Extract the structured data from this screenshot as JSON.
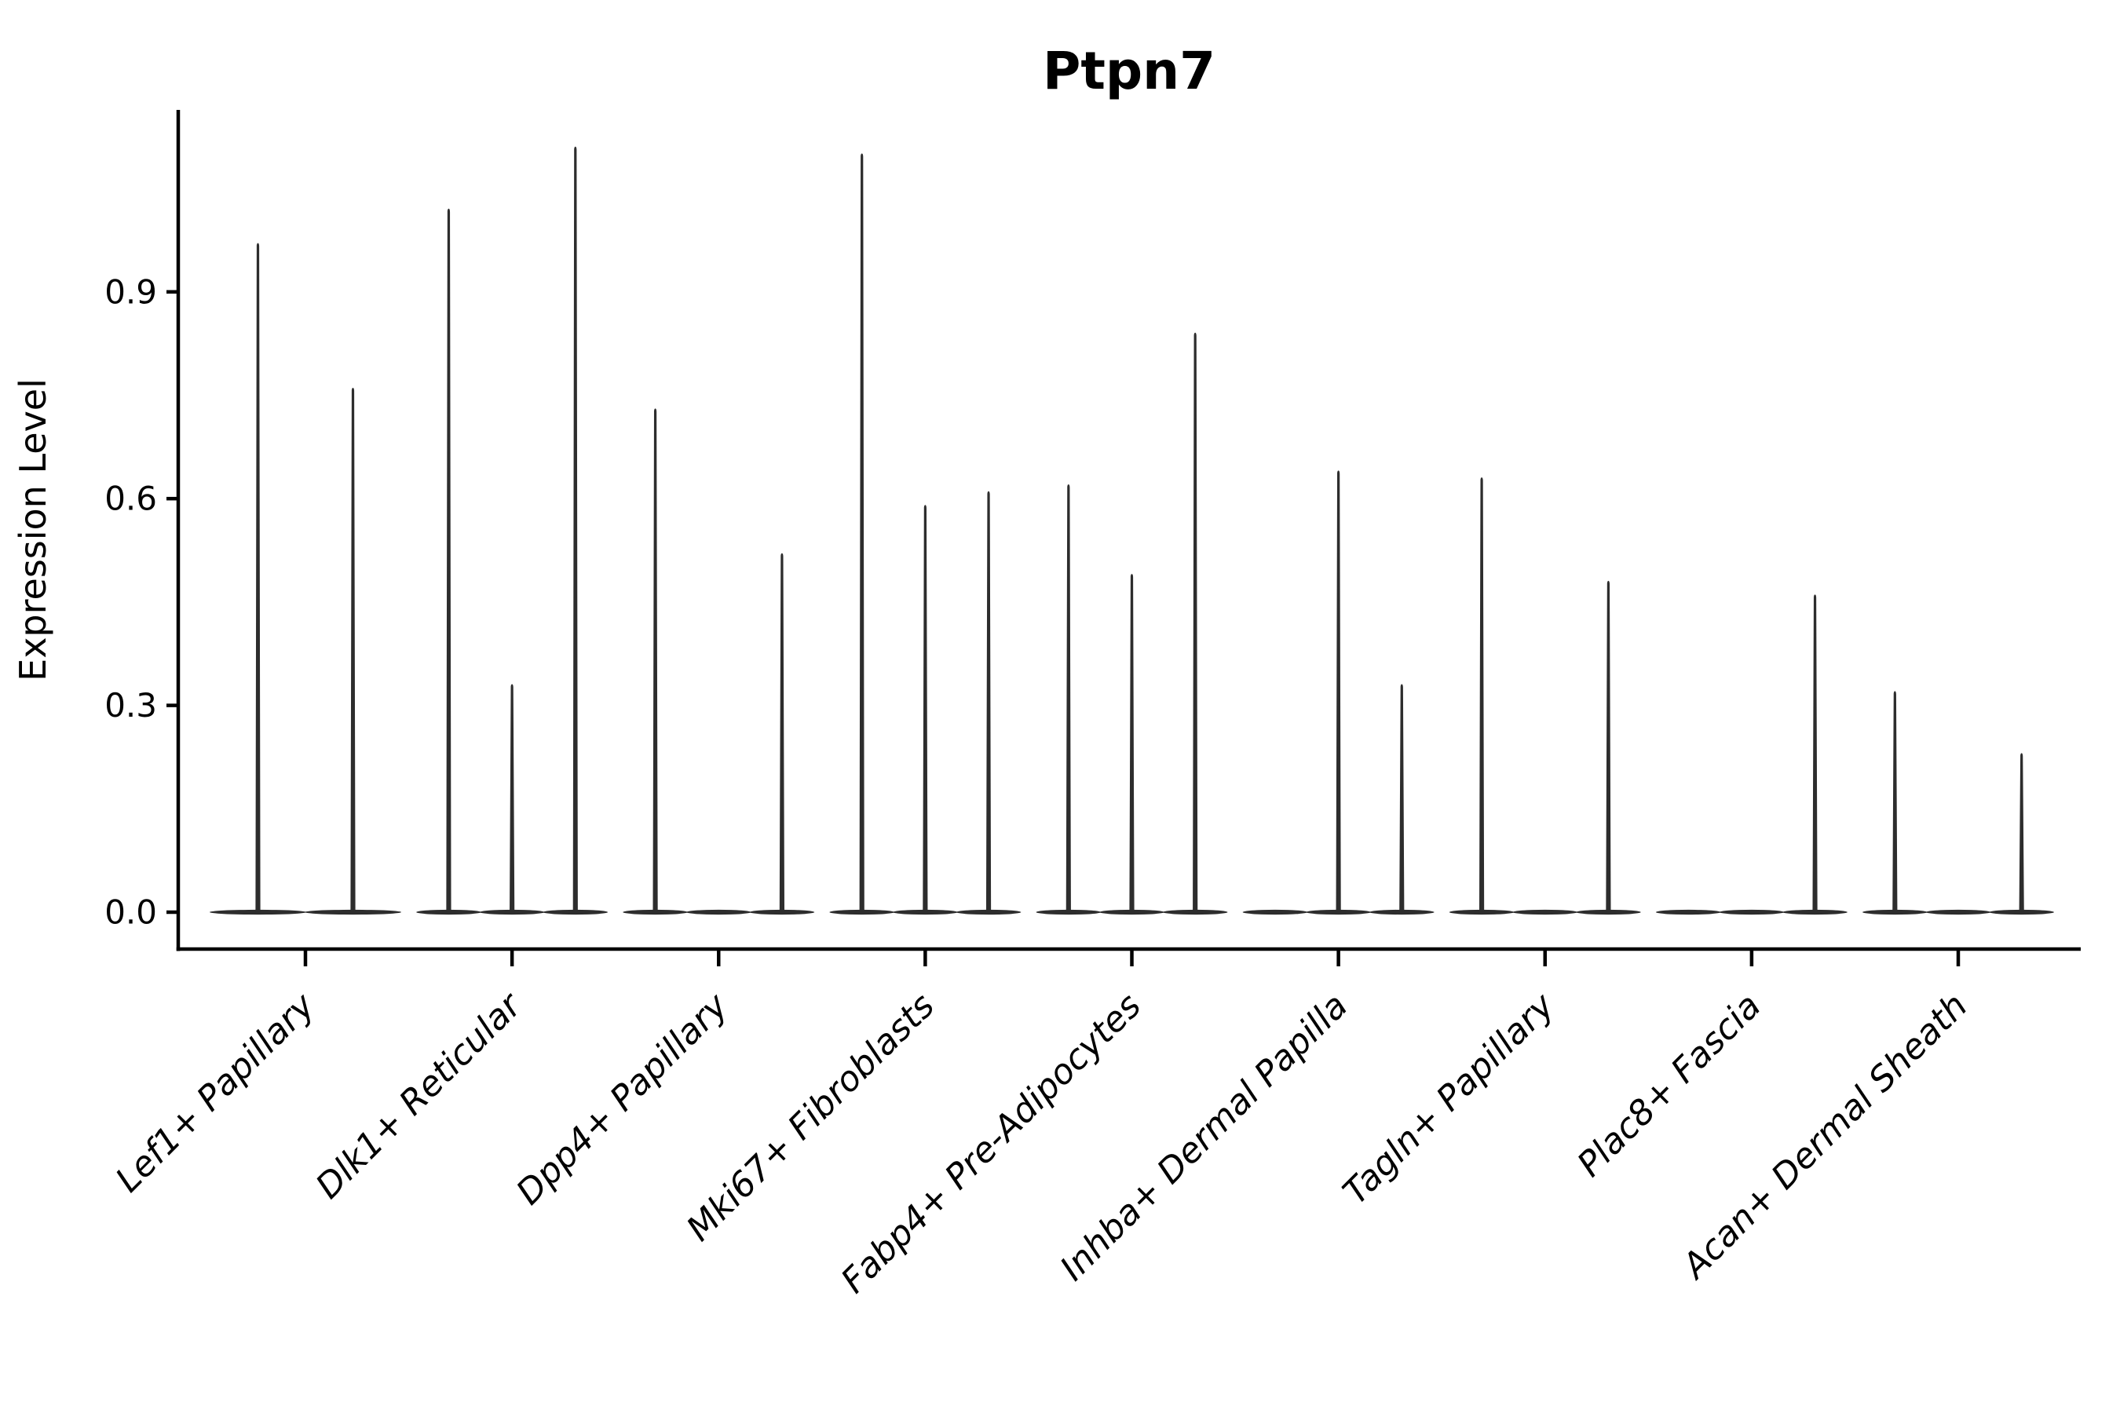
{
  "chart_data": {
    "type": "violin",
    "title": "Ptpn7",
    "xlabel": "",
    "ylabel": "Expression Level",
    "legend": "none",
    "grid": false,
    "ylim": [
      -0.05,
      1.16
    ],
    "yticks": [
      {
        "label": "0.0",
        "value": 0.0
      },
      {
        "label": "0.3",
        "value": 0.3
      },
      {
        "label": "0.6",
        "value": 0.6
      },
      {
        "label": "0.9",
        "value": 0.9
      }
    ],
    "categories": [
      "Lef1+ Papillary",
      "Dlk1+ Reticular",
      "Dpp4+ Papillary",
      "Mki67+ Fibroblasts",
      "Fabp4+ Pre-Adipocytes",
      "Inhba+ Dermal Papilla",
      "Tagln+ Papillary",
      "Plac8+ Fascia",
      "Acan+ Dermal Sheath"
    ],
    "groups": [
      {
        "label": "Lef1+ Papillary",
        "n_violins": 2,
        "spikes": [
          {
            "slot": 0,
            "value": 0.97
          },
          {
            "slot": 1,
            "value": 0.76
          }
        ]
      },
      {
        "label": "Dlk1+ Reticular",
        "n_violins": 3,
        "spikes": [
          {
            "slot": 0,
            "value": 1.02
          },
          {
            "slot": 1,
            "value": 0.33
          },
          {
            "slot": 2,
            "value": 1.11
          }
        ]
      },
      {
        "label": "Dpp4+ Papillary",
        "n_violins": 3,
        "spikes": [
          {
            "slot": 0,
            "value": 0.73
          },
          {
            "slot": 2,
            "value": 0.52
          }
        ]
      },
      {
        "label": "Mki67+ Fibroblasts",
        "n_violins": 3,
        "spikes": [
          {
            "slot": 0,
            "value": 1.1
          },
          {
            "slot": 1,
            "value": 0.59
          },
          {
            "slot": 2,
            "value": 0.61
          }
        ]
      },
      {
        "label": "Fabp4+ Pre-Adipocytes",
        "n_violins": 3,
        "spikes": [
          {
            "slot": 0,
            "value": 0.62
          },
          {
            "slot": 1,
            "value": 0.49
          },
          {
            "slot": 2,
            "value": 0.84
          }
        ]
      },
      {
        "label": "Inhba+ Dermal Papilla",
        "n_violins": 3,
        "spikes": [
          {
            "slot": 1,
            "value": 0.64
          },
          {
            "slot": 2,
            "value": 0.33
          }
        ]
      },
      {
        "label": "Tagln+ Papillary",
        "n_violins": 3,
        "spikes": [
          {
            "slot": 0,
            "value": 0.63
          },
          {
            "slot": 2,
            "value": 0.48
          }
        ]
      },
      {
        "label": "Plac8+ Fascia",
        "n_violins": 3,
        "spikes": [
          {
            "slot": 2,
            "value": 0.46
          }
        ]
      },
      {
        "label": "Acan+ Dermal Sheath",
        "n_violins": 3,
        "spikes": [
          {
            "slot": 0,
            "value": 0.32
          },
          {
            "slot": 2,
            "value": 0.23
          }
        ]
      }
    ],
    "colors": {
      "violin": "#2d2d2d",
      "axis": "#000000",
      "text": "#000000",
      "background": "#ffffff"
    }
  }
}
